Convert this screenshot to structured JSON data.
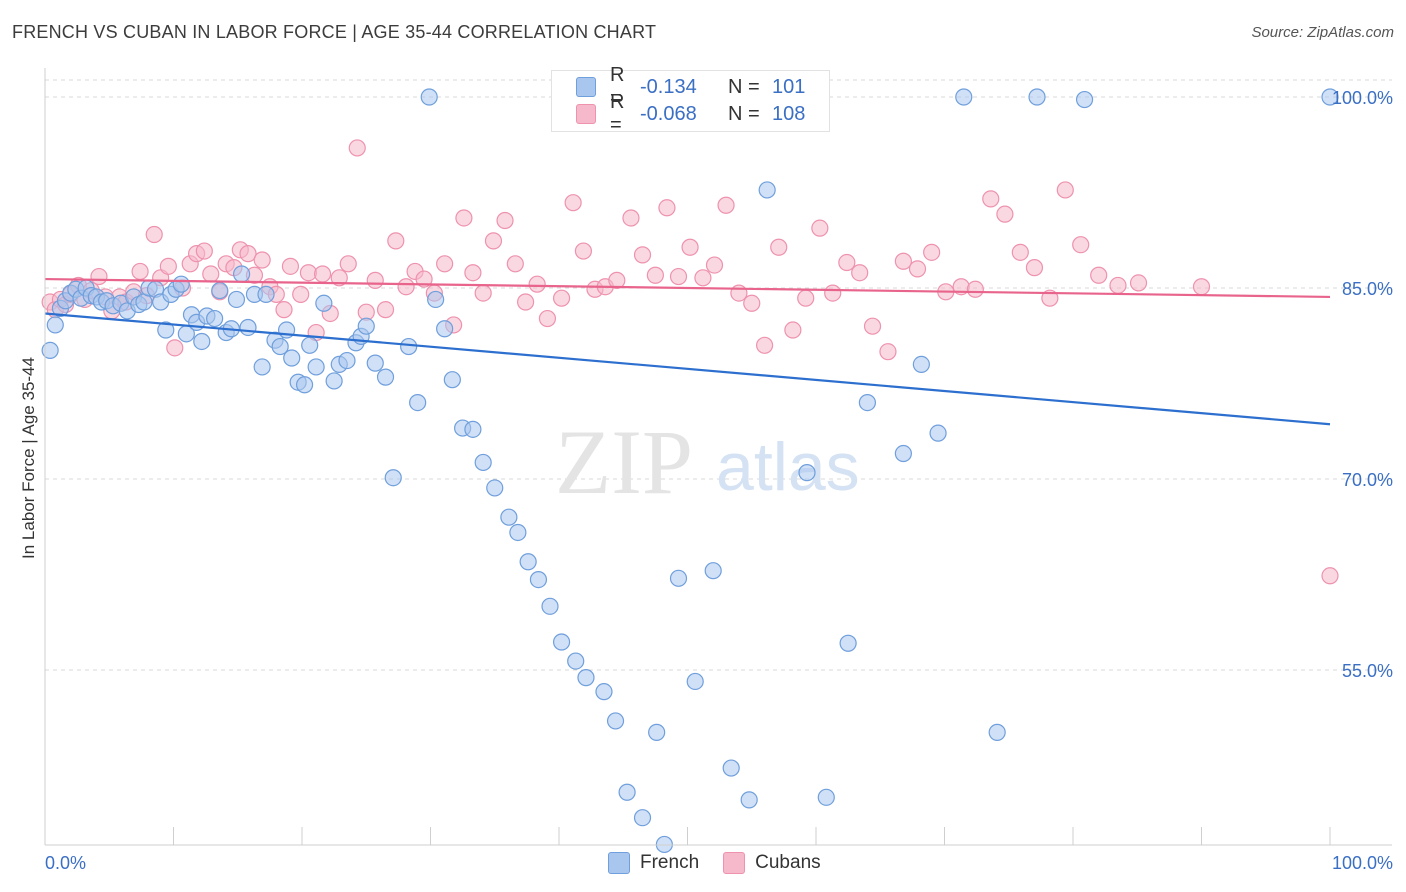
{
  "header": {
    "title": "FRENCH VS CUBAN IN LABOR FORCE | AGE 35-44 CORRELATION CHART",
    "source": "Source: ZipAtlas.com"
  },
  "legend": {
    "rows": [
      {
        "r_label": "R =",
        "r_value": "-0.134",
        "n_label": "N =",
        "n_value": "101"
      },
      {
        "r_label": "R =",
        "r_value": "-0.068",
        "n_label": "N =",
        "n_value": "108"
      }
    ]
  },
  "watermark": {
    "zip": "ZIP",
    "atlas": "atlas"
  },
  "colors": {
    "french_fill": "#a9c6ee",
    "french_stroke": "#6f9fdc",
    "french_line": "#2d6fcf",
    "cuban_fill": "#f6b8cb",
    "cuban_stroke": "#ee92ae",
    "cuban_line": "#e8648c",
    "tick_text": "#3a6fc4",
    "grid": "#d8d8d8"
  },
  "chart_data": {
    "type": "scatter",
    "title": "FRENCH VS CUBAN IN LABOR FORCE | AGE 35-44 CORRELATION CHART",
    "xlabel": "",
    "ylabel": "In Labor Force | Age 35-44",
    "xlim": [
      0,
      100
    ],
    "ylim": [
      39.5,
      102.5
    ],
    "x_tick_labels": [
      "0.0%",
      "100.0%"
    ],
    "y_ticks": [
      55,
      70,
      85,
      100
    ],
    "y_tick_labels": [
      "55.0%",
      "70.0%",
      "85.0%",
      "100.0%"
    ],
    "grid": true,
    "legend_position": "bottom-center",
    "series": [
      {
        "name": "French",
        "r": -0.134,
        "n": 101,
        "trend": {
          "x": [
            0,
            100
          ],
          "y": [
            83.0,
            74.3
          ]
        },
        "points": [
          [
            0.4,
            80.1
          ],
          [
            0.8,
            82.1
          ],
          [
            1.2,
            83.4
          ],
          [
            1.6,
            84.0
          ],
          [
            2.0,
            84.6
          ],
          [
            2.4,
            84.9
          ],
          [
            2.8,
            84.2
          ],
          [
            3.2,
            85.0
          ],
          [
            3.6,
            84.4
          ],
          [
            4.0,
            84.3
          ],
          [
            4.4,
            83.9
          ],
          [
            4.8,
            84.0
          ],
          [
            5.3,
            83.6
          ],
          [
            5.9,
            83.8
          ],
          [
            6.4,
            83.2
          ],
          [
            6.9,
            84.3
          ],
          [
            7.3,
            83.7
          ],
          [
            7.7,
            83.9
          ],
          [
            8.1,
            85.0
          ],
          [
            8.6,
            84.9
          ],
          [
            9.0,
            83.9
          ],
          [
            9.4,
            81.7
          ],
          [
            9.8,
            84.5
          ],
          [
            10.2,
            84.9
          ],
          [
            10.6,
            85.3
          ],
          [
            11.0,
            81.4
          ],
          [
            11.4,
            82.9
          ],
          [
            11.8,
            82.3
          ],
          [
            12.2,
            80.8
          ],
          [
            12.6,
            82.8
          ],
          [
            13.2,
            82.6
          ],
          [
            13.6,
            84.8
          ],
          [
            14.1,
            81.5
          ],
          [
            14.5,
            81.8
          ],
          [
            14.9,
            84.1
          ],
          [
            15.3,
            86.1
          ],
          [
            15.8,
            81.9
          ],
          [
            16.3,
            84.5
          ],
          [
            16.9,
            78.8
          ],
          [
            17.2,
            84.5
          ],
          [
            17.9,
            80.9
          ],
          [
            18.3,
            80.4
          ],
          [
            18.8,
            81.7
          ],
          [
            19.2,
            79.5
          ],
          [
            19.7,
            77.6
          ],
          [
            20.2,
            77.4
          ],
          [
            20.6,
            80.5
          ],
          [
            21.1,
            78.8
          ],
          [
            21.7,
            83.8
          ],
          [
            22.5,
            77.7
          ],
          [
            22.9,
            79.0
          ],
          [
            23.5,
            79.3
          ],
          [
            24.2,
            80.7
          ],
          [
            24.6,
            81.2
          ],
          [
            25.0,
            82.0
          ],
          [
            25.7,
            79.1
          ],
          [
            26.5,
            78.0
          ],
          [
            27.1,
            70.1
          ],
          [
            28.3,
            80.4
          ],
          [
            29.0,
            76.0
          ],
          [
            29.9,
            100.0
          ],
          [
            30.4,
            84.1
          ],
          [
            31.1,
            81.8
          ],
          [
            31.7,
            77.8
          ],
          [
            32.5,
            74.0
          ],
          [
            33.3,
            73.9
          ],
          [
            34.1,
            71.3
          ],
          [
            35.0,
            69.3
          ],
          [
            36.1,
            67.0
          ],
          [
            36.8,
            65.8
          ],
          [
            37.6,
            63.5
          ],
          [
            38.4,
            62.1
          ],
          [
            39.3,
            60.0
          ],
          [
            40.2,
            57.2
          ],
          [
            41.3,
            55.7
          ],
          [
            42.1,
            54.4
          ],
          [
            43.5,
            53.3
          ],
          [
            44.4,
            51.0
          ],
          [
            45.3,
            45.4
          ],
          [
            46.5,
            43.4
          ],
          [
            47.6,
            50.1
          ],
          [
            48.2,
            41.3
          ],
          [
            49.3,
            62.2
          ],
          [
            50.6,
            54.1
          ],
          [
            52.0,
            62.8
          ],
          [
            53.4,
            47.3
          ],
          [
            54.8,
            44.8
          ],
          [
            56.2,
            92.7
          ],
          [
            57.9,
            99.8
          ],
          [
            59.3,
            70.5
          ],
          [
            60.8,
            45.0
          ],
          [
            62.5,
            57.1
          ],
          [
            64.0,
            76.0
          ],
          [
            66.8,
            72.0
          ],
          [
            68.2,
            79.0
          ],
          [
            69.5,
            73.6
          ],
          [
            71.5,
            100.0
          ],
          [
            74.1,
            50.1
          ],
          [
            77.2,
            100.0
          ],
          [
            80.9,
            99.8
          ],
          [
            100.0,
            100.0
          ]
        ]
      },
      {
        "name": "Cubans",
        "r": -0.068,
        "n": 108,
        "trend": {
          "x": [
            0,
            100
          ],
          "y": [
            85.7,
            84.3
          ]
        },
        "points": [
          [
            0.4,
            83.9
          ],
          [
            0.8,
            83.3
          ],
          [
            1.2,
            84.1
          ],
          [
            1.6,
            83.7
          ],
          [
            2.0,
            84.5
          ],
          [
            2.6,
            85.2
          ],
          [
            3.1,
            84.1
          ],
          [
            3.6,
            84.8
          ],
          [
            4.2,
            85.9
          ],
          [
            4.7,
            84.3
          ],
          [
            5.2,
            83.2
          ],
          [
            5.8,
            84.3
          ],
          [
            6.3,
            83.9
          ],
          [
            6.9,
            84.7
          ],
          [
            7.4,
            86.3
          ],
          [
            7.9,
            84.4
          ],
          [
            8.5,
            89.2
          ],
          [
            9.0,
            85.8
          ],
          [
            9.6,
            86.7
          ],
          [
            10.1,
            80.3
          ],
          [
            10.7,
            85.0
          ],
          [
            11.3,
            86.9
          ],
          [
            11.8,
            87.7
          ],
          [
            12.4,
            87.9
          ],
          [
            12.9,
            86.1
          ],
          [
            13.6,
            84.7
          ],
          [
            14.1,
            86.9
          ],
          [
            14.7,
            86.6
          ],
          [
            15.2,
            88.0
          ],
          [
            15.8,
            87.7
          ],
          [
            16.3,
            86.0
          ],
          [
            16.9,
            87.2
          ],
          [
            17.5,
            85.1
          ],
          [
            18.0,
            84.5
          ],
          [
            18.6,
            83.3
          ],
          [
            19.1,
            86.7
          ],
          [
            19.9,
            84.5
          ],
          [
            20.5,
            86.2
          ],
          [
            21.1,
            81.5
          ],
          [
            21.6,
            86.1
          ],
          [
            22.2,
            83.0
          ],
          [
            22.9,
            85.8
          ],
          [
            23.6,
            86.9
          ],
          [
            24.3,
            96.0
          ],
          [
            25.0,
            83.1
          ],
          [
            25.7,
            85.6
          ],
          [
            26.5,
            83.3
          ],
          [
            27.3,
            88.7
          ],
          [
            28.1,
            85.1
          ],
          [
            28.8,
            86.3
          ],
          [
            29.5,
            85.7
          ],
          [
            30.3,
            84.6
          ],
          [
            31.1,
            86.9
          ],
          [
            31.8,
            82.1
          ],
          [
            32.6,
            90.5
          ],
          [
            33.3,
            86.2
          ],
          [
            34.1,
            84.6
          ],
          [
            34.9,
            88.7
          ],
          [
            35.8,
            90.3
          ],
          [
            36.6,
            86.9
          ],
          [
            37.4,
            83.9
          ],
          [
            38.3,
            85.3
          ],
          [
            39.1,
            82.6
          ],
          [
            40.2,
            84.2
          ],
          [
            41.1,
            91.7
          ],
          [
            41.9,
            87.9
          ],
          [
            42.8,
            84.9
          ],
          [
            43.6,
            85.1
          ],
          [
            44.5,
            85.6
          ],
          [
            45.6,
            90.5
          ],
          [
            46.5,
            87.6
          ],
          [
            47.5,
            86.0
          ],
          [
            48.4,
            91.3
          ],
          [
            49.3,
            85.9
          ],
          [
            50.2,
            88.2
          ],
          [
            51.2,
            85.8
          ],
          [
            52.1,
            86.8
          ],
          [
            53.0,
            91.5
          ],
          [
            54.0,
            84.6
          ],
          [
            55.0,
            83.8
          ],
          [
            56.0,
            80.5
          ],
          [
            57.1,
            88.2
          ],
          [
            58.2,
            81.7
          ],
          [
            59.2,
            84.2
          ],
          [
            60.3,
            89.7
          ],
          [
            61.3,
            84.6
          ],
          [
            62.4,
            87.0
          ],
          [
            63.4,
            86.2
          ],
          [
            64.4,
            82.0
          ],
          [
            65.6,
            80.0
          ],
          [
            66.8,
            87.1
          ],
          [
            67.9,
            86.5
          ],
          [
            69.0,
            87.8
          ],
          [
            70.1,
            84.7
          ],
          [
            71.3,
            85.1
          ],
          [
            72.4,
            84.9
          ],
          [
            73.6,
            92.0
          ],
          [
            74.7,
            90.8
          ],
          [
            75.9,
            87.8
          ],
          [
            77.0,
            86.6
          ],
          [
            78.2,
            84.2
          ],
          [
            79.4,
            92.7
          ],
          [
            80.6,
            88.4
          ],
          [
            82.0,
            86.0
          ],
          [
            83.5,
            85.2
          ],
          [
            85.1,
            85.4
          ],
          [
            90.0,
            85.1
          ],
          [
            100.0,
            62.4
          ]
        ]
      }
    ]
  }
}
